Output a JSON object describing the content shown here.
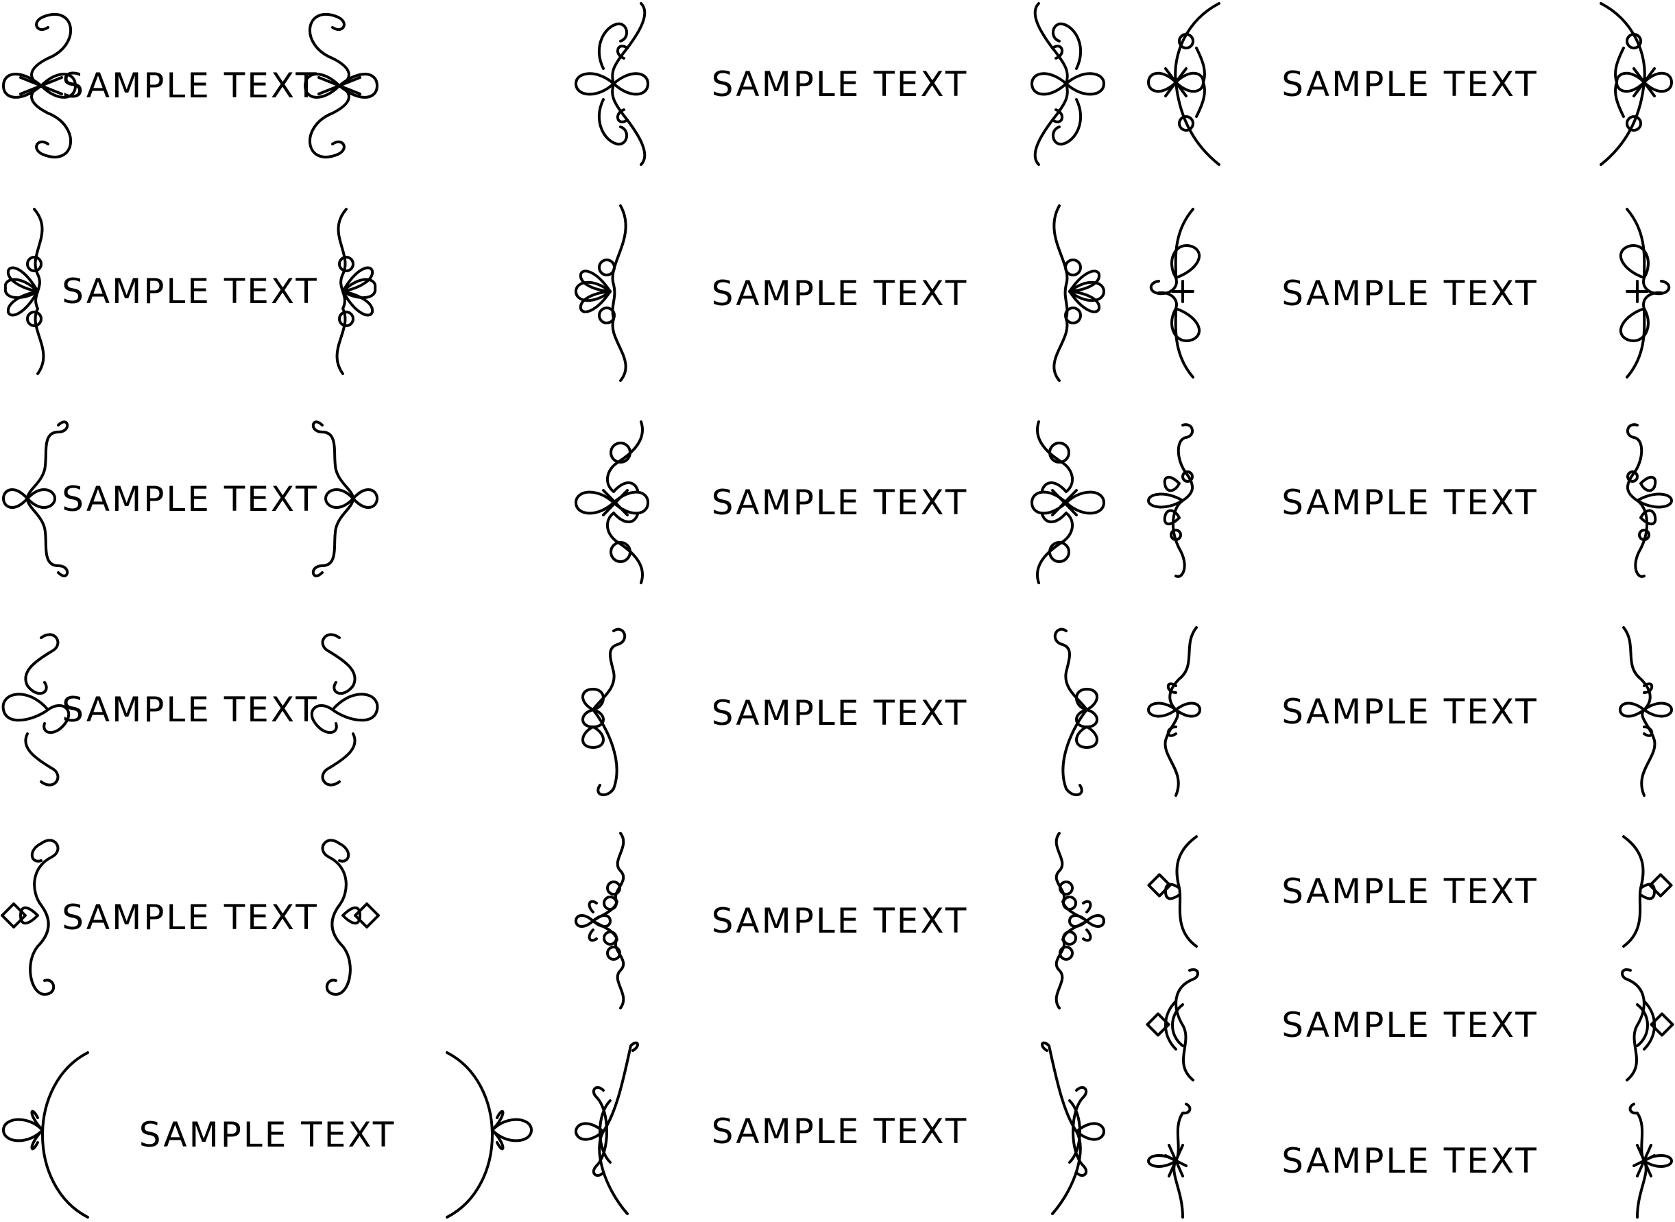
{
  "frames": [
    {
      "label": "SAMPLE TEXT",
      "ornament": "scroll-knot"
    },
    {
      "label": "SAMPLE TEXT",
      "ornament": "double-scroll-knot"
    },
    {
      "label": "SAMPLE TEXT",
      "ornament": "bracket-arc-knot"
    },
    {
      "label": "SAMPLE TEXT",
      "ornament": "petal-wave"
    },
    {
      "label": "SAMPLE TEXT",
      "ornament": "petal-wave-tall"
    },
    {
      "label": "SAMPLE TEXT",
      "ornament": "pretzel-knot"
    },
    {
      "label": "SAMPLE TEXT",
      "ornament": "simple-loop-knot"
    },
    {
      "label": "SAMPLE TEXT",
      "ornament": "ornate-curl-knot"
    },
    {
      "label": "SAMPLE TEXT",
      "ornament": "petal-loop"
    },
    {
      "label": "SAMPLE TEXT",
      "ornament": "heart-curl"
    },
    {
      "label": "SAMPLE TEXT",
      "ornament": "triple-loop"
    },
    {
      "label": "SAMPLE TEXT",
      "ornament": "loop-wave"
    },
    {
      "label": "SAMPLE TEXT",
      "ornament": "diamond-curl"
    },
    {
      "label": "SAMPLE TEXT",
      "ornament": "beaded-curl"
    },
    {
      "label": "SAMPLE TEXT",
      "ornament": "diamond-knot-small"
    },
    {
      "label": "SAMPLE TEXT",
      "ornament": "diamond-knot-dense"
    },
    {
      "label": "SAMPLE TEXT",
      "ornament": "parenthesis-knot"
    },
    {
      "label": "SAMPLE TEXT",
      "ornament": "long-knot"
    },
    {
      "label": "SAMPLE TEXT",
      "ornament": "small-wave-knot"
    }
  ]
}
